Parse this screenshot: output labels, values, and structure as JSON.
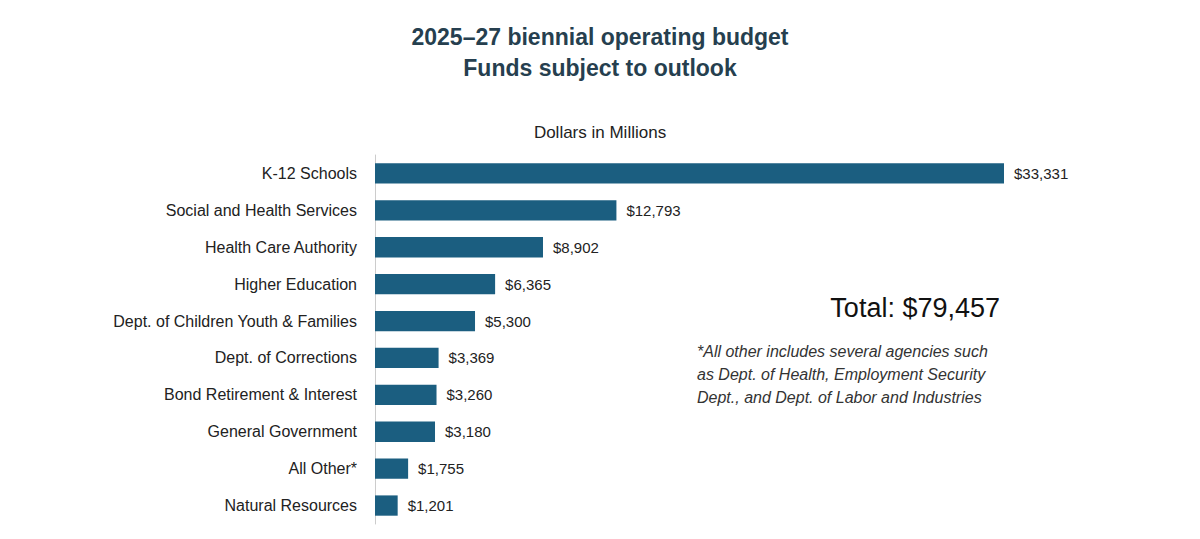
{
  "chart_data": {
    "type": "bar",
    "orientation": "horizontal",
    "title": "2025–27 biennial operating budget\nFunds subject to outlook",
    "subtitle": "Dollars in Millions",
    "categories": [
      "K-12 Schools",
      "Social and Health Services",
      "Health Care Authority",
      "Higher Education",
      "Dept. of Children Youth & Families",
      "Dept. of Corrections",
      "Bond Retirement & Interest",
      "General Government",
      "All Other*",
      "Natural Resources"
    ],
    "values": [
      33331,
      12793,
      8902,
      6365,
      5300,
      3369,
      3260,
      3180,
      1755,
      1201
    ],
    "value_labels": [
      "$33,331",
      "$12,793",
      "$8,902",
      "$6,365",
      "$5,300",
      "$3,369",
      "$3,260",
      "$3,180",
      "$1,755",
      "$1,201"
    ],
    "color": "#1b5e80",
    "data_labels": true,
    "grid": false,
    "tick_labels": "y",
    "annotations": [
      "Total: $79,457",
      "*All other includes several agencies such\nas Dept. of Health, Employment Security\nDept., and Dept. of Labor and Industries"
    ]
  }
}
